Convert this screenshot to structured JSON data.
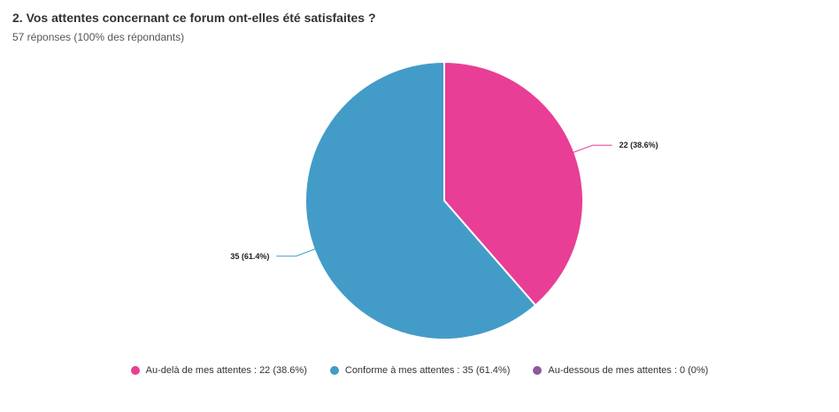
{
  "header": {
    "title": "2. Vos attentes concernant ce forum ont-elles été satisfaites ?",
    "subtitle": "57 réponses (100% des répondants)"
  },
  "chart_data": {
    "type": "pie",
    "slices": [
      {
        "label": "Au-delà de mes attentes",
        "value": 22,
        "percent": 38.6,
        "color": "#e83e96",
        "data_label": "22 (38.6%)"
      },
      {
        "label": "Conforme à mes attentes",
        "value": 35,
        "percent": 61.4,
        "color": "#439cc8",
        "data_label": "35 (61.4%)"
      },
      {
        "label": "Au-dessous de mes attentes",
        "value": 0,
        "percent": 0,
        "color": "#8e5b9a",
        "data_label": "0 (0%)"
      }
    ],
    "legend_position": "bottom"
  },
  "legend": {
    "items": [
      {
        "text": "Au-delà de mes attentes : 22 (38.6%)",
        "color": "#e83e96"
      },
      {
        "text": "Conforme à mes attentes : 35 (61.4%)",
        "color": "#439cc8"
      },
      {
        "text": "Au-dessous de mes attentes : 0 (0%)",
        "color": "#8e5b9a"
      }
    ]
  }
}
